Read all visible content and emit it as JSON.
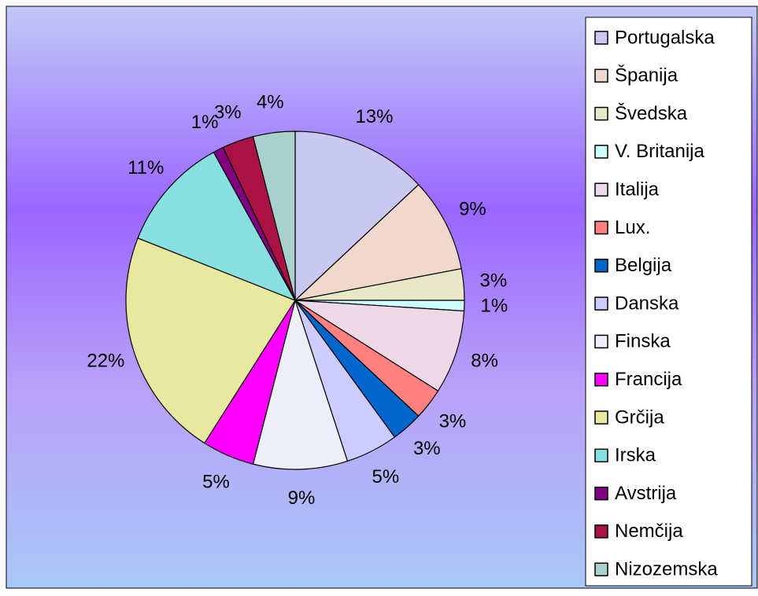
{
  "chart_data": {
    "type": "pie",
    "categories": [
      "Portugalska",
      "Španija",
      "Švedska",
      "V. Britanija",
      "Italija",
      "Lux.",
      "Belgija",
      "Danska",
      "Finska",
      "Francija",
      "Grčija",
      "Irska",
      "Avstrija",
      "Nemčija",
      "Nizozemska"
    ],
    "values": [
      13,
      9,
      3,
      1,
      8,
      3,
      3,
      5,
      9,
      5,
      22,
      11,
      1,
      3,
      4
    ],
    "value_labels": [
      "13%",
      "9%",
      "3%",
      "1%",
      "8%",
      "3%",
      "3%",
      "5%",
      "9%",
      "5%",
      "22%",
      "11%",
      "1%",
      "3%",
      "4%"
    ],
    "colors": [
      "#c8c8f0",
      "#f0d8cc",
      "#e8e8c8",
      "#ccffff",
      "#eed8e8",
      "#ff8080",
      "#0066cc",
      "#ccccff",
      "#eeeef8",
      "#ff00ff",
      "#e8e8a0",
      "#88e0e0",
      "#800080",
      "#aa1144",
      "#a8d0cc"
    ],
    "legend": "right"
  }
}
